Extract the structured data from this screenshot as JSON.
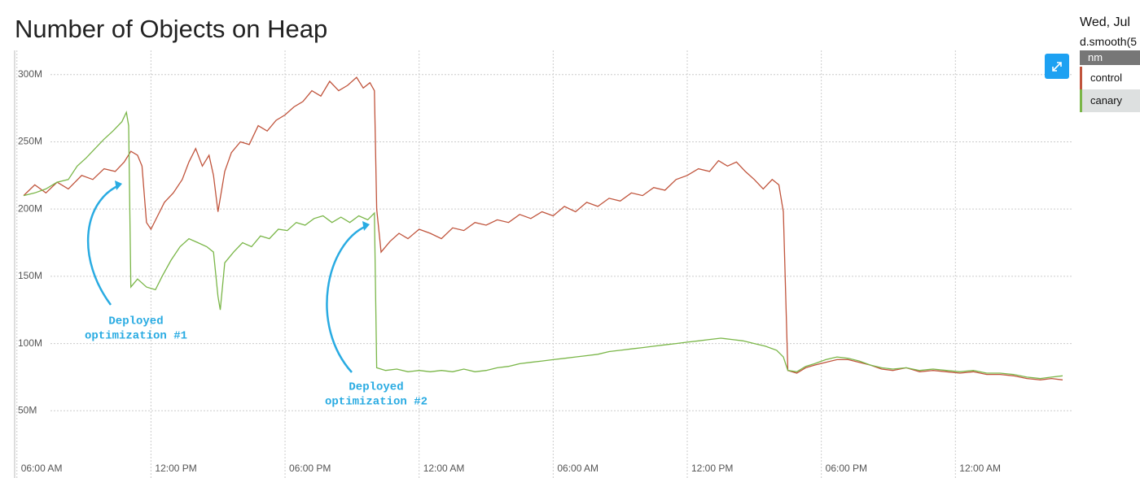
{
  "panel": {
    "date": "Wed, Jul",
    "query": "d.smooth(5"
  },
  "chart_data": {
    "type": "line",
    "title": "Number of Objects on Heap",
    "legend_title": "nm",
    "grid": true,
    "xlim": [
      -0.1,
      47.2
    ],
    "ylim": [
      0,
      318
    ],
    "xticks": [
      {
        "value": 0,
        "label": "06:00 AM"
      },
      {
        "value": 6,
        "label": "12:00 PM"
      },
      {
        "value": 12,
        "label": "06:00 PM"
      },
      {
        "value": 18,
        "label": "12:00 AM"
      },
      {
        "value": 24,
        "label": "06:00 AM"
      },
      {
        "value": 30,
        "label": "12:00 PM"
      },
      {
        "value": 36,
        "label": "06:00 PM"
      },
      {
        "value": 42,
        "label": "12:00 AM"
      }
    ],
    "yticks": [
      {
        "value": 50,
        "label": "50M"
      },
      {
        "value": 100,
        "label": "100M"
      },
      {
        "value": 150,
        "label": "150M"
      },
      {
        "value": 200,
        "label": "200M"
      },
      {
        "value": 250,
        "label": "250M"
      },
      {
        "value": 300,
        "label": "300M"
      }
    ],
    "annotations": [
      {
        "text": [
          "Deployed",
          "optimization #1"
        ]
      },
      {
        "text": [
          "Deployed",
          "optimization #2"
        ]
      }
    ],
    "series": [
      {
        "name": "control",
        "color": "#c0543c",
        "x": [
          0.3,
          0.8,
          1.3,
          1.8,
          2.3,
          2.9,
          3.4,
          3.9,
          4.4,
          4.8,
          5.1,
          5.4,
          5.6,
          5.8,
          6.0,
          6.3,
          6.6,
          7.0,
          7.4,
          7.7,
          8.0,
          8.3,
          8.6,
          8.8,
          9.0,
          9.3,
          9.6,
          10.0,
          10.4,
          10.8,
          11.2,
          11.6,
          12.0,
          12.4,
          12.8,
          13.2,
          13.6,
          14.0,
          14.4,
          14.8,
          15.2,
          15.5,
          15.8,
          16.0,
          16.1,
          16.3,
          16.7,
          17.1,
          17.5,
          18.0,
          18.5,
          19.0,
          19.5,
          20.0,
          20.5,
          21.0,
          21.5,
          22.0,
          22.5,
          23.0,
          23.5,
          24.0,
          24.5,
          25.0,
          25.5,
          26.0,
          26.5,
          27.0,
          27.5,
          28.0,
          28.5,
          29.0,
          29.5,
          30.0,
          30.5,
          31.0,
          31.4,
          31.8,
          32.2,
          32.6,
          33.0,
          33.4,
          33.8,
          34.1,
          34.3,
          34.5,
          34.9,
          35.3,
          35.7,
          36.2,
          36.7,
          37.2,
          37.7,
          38.2,
          38.7,
          39.2,
          39.8,
          40.4,
          41.0,
          41.6,
          42.2,
          42.8,
          43.4,
          44.0,
          44.6,
          45.2,
          45.8,
          46.3,
          46.8
        ],
        "values": [
          210,
          218,
          212,
          220,
          215,
          225,
          222,
          230,
          228,
          235,
          243,
          240,
          232,
          190,
          185,
          195,
          205,
          212,
          222,
          235,
          245,
          232,
          240,
          225,
          198,
          228,
          242,
          250,
          248,
          262,
          258,
          266,
          270,
          276,
          280,
          288,
          284,
          295,
          288,
          292,
          298,
          290,
          294,
          288,
          200,
          168,
          176,
          182,
          178,
          185,
          182,
          178,
          186,
          184,
          190,
          188,
          192,
          190,
          196,
          193,
          198,
          195,
          202,
          198,
          205,
          202,
          208,
          206,
          212,
          210,
          216,
          214,
          222,
          225,
          230,
          228,
          236,
          232,
          235,
          228,
          222,
          215,
          222,
          218,
          198,
          80,
          78,
          82,
          84,
          86,
          88,
          88,
          86,
          84,
          81,
          80,
          82,
          79,
          80,
          79,
          78,
          79,
          77,
          77,
          76,
          74,
          73,
          74,
          73
        ]
      },
      {
        "name": "canary",
        "color": "#7ab648",
        "x": [
          0.3,
          0.8,
          1.3,
          1.8,
          2.3,
          2.7,
          3.1,
          3.5,
          3.9,
          4.3,
          4.7,
          4.9,
          5.0,
          5.1,
          5.4,
          5.8,
          6.2,
          6.5,
          6.9,
          7.3,
          7.7,
          8.1,
          8.5,
          8.8,
          9.0,
          9.1,
          9.3,
          9.7,
          10.1,
          10.5,
          10.9,
          11.3,
          11.7,
          12.1,
          12.5,
          12.9,
          13.3,
          13.7,
          14.1,
          14.5,
          14.9,
          15.3,
          15.7,
          16.0,
          16.1,
          16.5,
          17.0,
          17.5,
          18.0,
          18.5,
          19.0,
          19.5,
          20.0,
          20.5,
          21.0,
          21.5,
          22.0,
          22.5,
          23.0,
          23.5,
          24.0,
          24.5,
          25.0,
          25.5,
          26.0,
          26.5,
          27.0,
          27.5,
          28.0,
          28.5,
          29.0,
          29.5,
          30.0,
          30.5,
          31.0,
          31.5,
          32.0,
          32.5,
          33.0,
          33.5,
          34.0,
          34.3,
          34.5,
          34.9,
          35.3,
          35.7,
          36.2,
          36.7,
          37.2,
          37.7,
          38.2,
          38.7,
          39.2,
          39.8,
          40.4,
          41.0,
          41.6,
          42.2,
          42.8,
          43.4,
          44.0,
          44.6,
          45.2,
          45.8,
          46.3,
          46.8
        ],
        "values": [
          210,
          212,
          215,
          220,
          222,
          232,
          238,
          245,
          252,
          258,
          265,
          272,
          262,
          142,
          148,
          142,
          140,
          150,
          162,
          172,
          178,
          175,
          172,
          168,
          135,
          125,
          160,
          168,
          175,
          172,
          180,
          178,
          185,
          184,
          190,
          188,
          193,
          195,
          190,
          194,
          190,
          195,
          192,
          197,
          82,
          80,
          81,
          79,
          80,
          79,
          80,
          79,
          81,
          79,
          80,
          82,
          83,
          85,
          86,
          87,
          88,
          89,
          90,
          91,
          92,
          94,
          95,
          96,
          97,
          98,
          99,
          100,
          101,
          102,
          103,
          104,
          103,
          102,
          100,
          98,
          95,
          90,
          80,
          79,
          83,
          85,
          88,
          90,
          89,
          87,
          84,
          82,
          81,
          82,
          80,
          81,
          80,
          79,
          80,
          78,
          78,
          77,
          75,
          74,
          75,
          76
        ]
      }
    ]
  }
}
